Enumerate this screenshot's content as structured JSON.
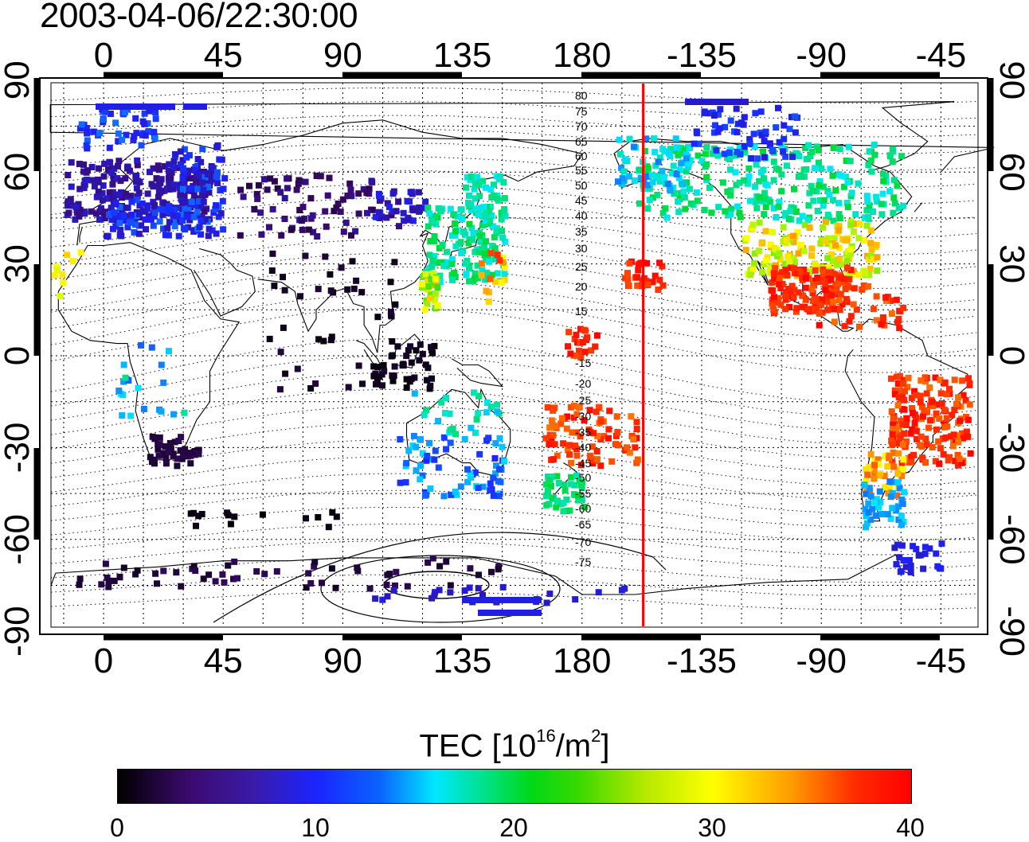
{
  "timestamp": "2003-04-06/22:30:00",
  "map": {
    "top_lon_labels": [
      "0",
      "45",
      "90",
      "135",
      "180",
      "-135",
      "-90",
      "-45"
    ],
    "bottom_lon_labels": [
      "0",
      "45",
      "90",
      "135",
      "180",
      "-135",
      "-90",
      "-45"
    ],
    "left_lat_labels": [
      "90",
      "60",
      "30",
      "0",
      "-30",
      "-60",
      "-90"
    ],
    "right_lat_labels": [
      "90",
      "60",
      "30",
      "0",
      "-30",
      "-60",
      "-90"
    ],
    "contour_labels": [
      "80",
      "75",
      "70",
      "65",
      "60",
      "55",
      "50",
      "45",
      "40",
      "35",
      "30",
      "25",
      "20",
      "15",
      "-15",
      "-20",
      "-25",
      "-30",
      "-35",
      "-40",
      "-45",
      "-50",
      "-55",
      "-60",
      "-65",
      "-70",
      "-75"
    ],
    "terminator_longitude": -157,
    "terminator_color": "#ff0000"
  },
  "colorbar": {
    "title_prefix": "TEC  [10",
    "title_exp": "16",
    "title_mid": "/m",
    "title_exp2": "2",
    "title_suffix": "]",
    "tick_labels": [
      "0",
      "10",
      "20",
      "30",
      "40"
    ],
    "range": [
      0,
      40
    ],
    "colors": [
      "#000000",
      "#3b0a6e",
      "#1b24ff",
      "#00e8ff",
      "#00d817",
      "#ffff00",
      "#ff0000"
    ]
  }
}
